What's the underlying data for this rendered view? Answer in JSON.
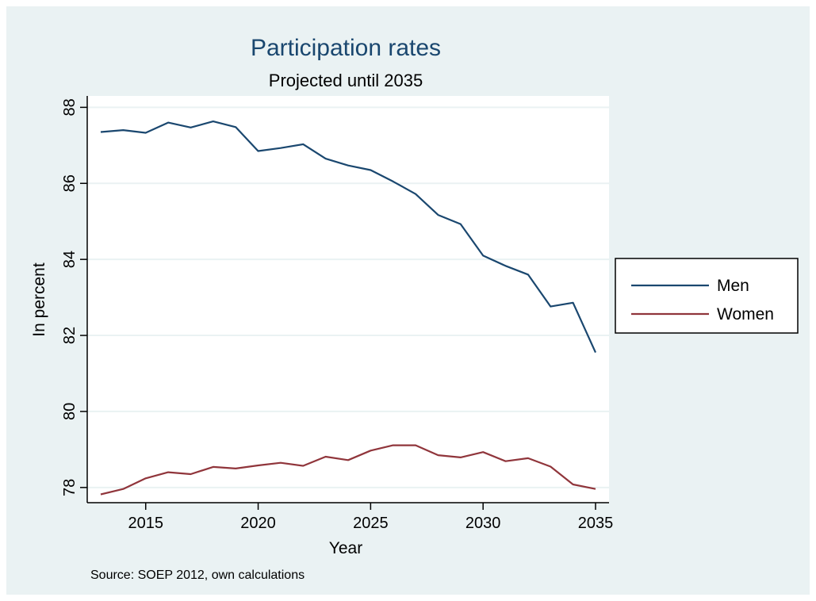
{
  "colors": {
    "background": "#eaf2f3",
    "plot_background": "#ffffff",
    "gridline": "#eaf2f3",
    "men": "#1a476f",
    "women": "#90353b",
    "title": "#1a476f"
  },
  "chart_data": {
    "type": "line",
    "title": "Participation rates",
    "subtitle": "Projected until 2035",
    "xlabel": "Year",
    "ylabel": "In percent",
    "note": "Source: SOEP 2012, own calculations",
    "xlim": [
      2013,
      2035
    ],
    "ylim": [
      77.6,
      88.3
    ],
    "xticks": [
      "2015",
      "2020",
      "2025",
      "2030",
      "2035"
    ],
    "yticks": [
      "78",
      "80",
      "82",
      "84",
      "86",
      "88"
    ],
    "grid": "horizontal",
    "legend_position": "right",
    "x": [
      2013,
      2014,
      2015,
      2016,
      2017,
      2018,
      2019,
      2020,
      2021,
      2022,
      2023,
      2024,
      2025,
      2026,
      2027,
      2028,
      2029,
      2030,
      2031,
      2032,
      2033,
      2034,
      2035
    ],
    "series": [
      {
        "name": "Men",
        "color": "#1a476f",
        "values": [
          87.35,
          87.4,
          87.33,
          87.6,
          87.47,
          87.63,
          87.48,
          86.85,
          86.93,
          87.03,
          86.65,
          86.47,
          86.35,
          86.05,
          85.72,
          85.17,
          84.93,
          84.1,
          83.83,
          83.6,
          82.76,
          82.86,
          81.55
        ]
      },
      {
        "name": "Women",
        "color": "#90353b",
        "values": [
          77.82,
          77.96,
          78.24,
          78.4,
          78.35,
          78.54,
          78.5,
          78.58,
          78.65,
          78.57,
          78.81,
          78.72,
          78.97,
          79.11,
          79.11,
          78.85,
          78.79,
          78.93,
          78.69,
          78.77,
          78.55,
          78.08,
          77.96
        ]
      }
    ]
  }
}
